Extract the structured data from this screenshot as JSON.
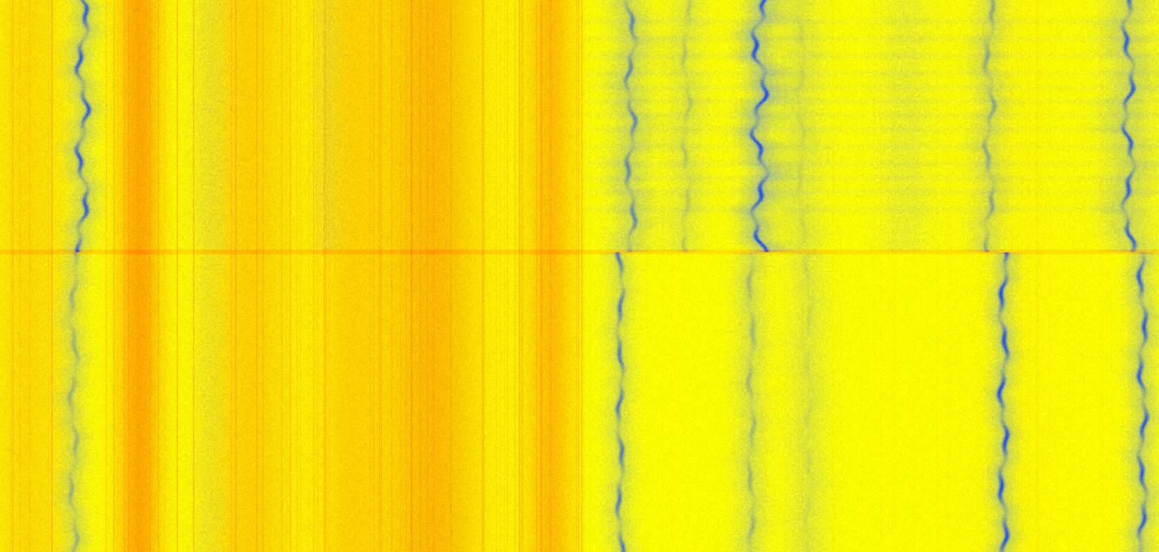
{
  "view": {
    "type": "spectrogram-waterfall",
    "orientation": "vertical-time",
    "labels_visible": false,
    "segments": 2
  },
  "colors": {
    "high_intensity": "#ff9f00",
    "mid_intensity": "#ffd400",
    "low_intensity": "#ffff00",
    "trace_light": "#a9bf8a",
    "trace_dark": "#1f4fe8",
    "background": "#ffee00"
  },
  "icons": []
}
